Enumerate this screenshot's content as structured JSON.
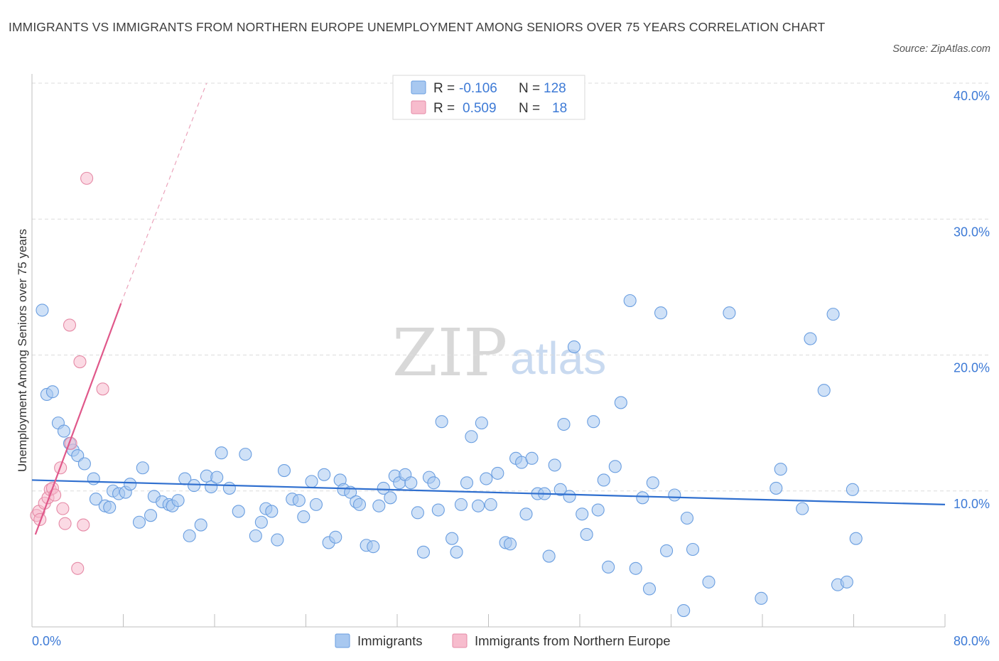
{
  "title": "IMMIGRANTS VS IMMIGRANTS FROM NORTHERN EUROPE UNEMPLOYMENT AMONG SENIORS OVER 75 YEARS CORRELATION CHART",
  "source": "Source: ZipAtlas.com",
  "watermark": {
    "zip": "ZIP",
    "atlas": "atlas"
  },
  "legend": {
    "r_label": "R =",
    "n_label": "N =",
    "rows": [
      {
        "name": "Immigrants",
        "r": "-0.106",
        "n": "128",
        "color": "#a8c8f0",
        "stroke": "#6a9ee0"
      },
      {
        "name": "Immigrants from Northern Europe",
        "r": "0.509",
        "n": "18",
        "color": "#f7bccd",
        "stroke": "#e58aa6"
      }
    ]
  },
  "chart_data": {
    "type": "scatter",
    "xlabel": "",
    "ylabel": "Unemployment Among Seniors over 75 years",
    "xlim": [
      0,
      80
    ],
    "ylim": [
      0,
      40
    ],
    "x_tick_labels": [
      "0.0%",
      "80.0%"
    ],
    "y_ticks": [
      10,
      20,
      30,
      40
    ],
    "y_tick_labels": [
      "10.0%",
      "20.0%",
      "30.0%",
      "40.0%"
    ],
    "grid": true,
    "series": [
      {
        "name": "Immigrants",
        "color": "#6a9ee0",
        "fill": "#a8c8f0",
        "trend": {
          "x": [
            0,
            80
          ],
          "y": [
            10.8,
            9.0
          ],
          "color": "#2f6fcf"
        },
        "points": [
          [
            0.9,
            23.3
          ],
          [
            1.3,
            17.1
          ],
          [
            1.8,
            17.3
          ],
          [
            2.3,
            15.0
          ],
          [
            2.8,
            14.4
          ],
          [
            3.3,
            13.5
          ],
          [
            3.6,
            13.0
          ],
          [
            4.0,
            12.6
          ],
          [
            4.6,
            12.0
          ],
          [
            5.4,
            10.9
          ],
          [
            5.6,
            9.4
          ],
          [
            6.4,
            8.9
          ],
          [
            6.8,
            8.8
          ],
          [
            7.1,
            10.0
          ],
          [
            7.6,
            9.8
          ],
          [
            8.2,
            9.9
          ],
          [
            8.6,
            10.5
          ],
          [
            9.4,
            7.7
          ],
          [
            9.7,
            11.7
          ],
          [
            10.4,
            8.2
          ],
          [
            10.7,
            9.6
          ],
          [
            11.4,
            9.2
          ],
          [
            12.0,
            9.0
          ],
          [
            12.3,
            8.9
          ],
          [
            12.8,
            9.3
          ],
          [
            13.4,
            10.9
          ],
          [
            13.8,
            6.7
          ],
          [
            14.2,
            10.4
          ],
          [
            14.8,
            7.5
          ],
          [
            15.3,
            11.1
          ],
          [
            15.7,
            10.3
          ],
          [
            16.2,
            11.0
          ],
          [
            16.6,
            12.8
          ],
          [
            17.3,
            10.2
          ],
          [
            18.1,
            8.5
          ],
          [
            18.7,
            12.7
          ],
          [
            19.6,
            6.7
          ],
          [
            20.1,
            7.7
          ],
          [
            20.5,
            8.7
          ],
          [
            21.0,
            8.5
          ],
          [
            21.5,
            6.4
          ],
          [
            22.1,
            11.5
          ],
          [
            22.8,
            9.4
          ],
          [
            23.4,
            9.3
          ],
          [
            23.8,
            8.1
          ],
          [
            24.5,
            10.7
          ],
          [
            24.9,
            9.0
          ],
          [
            25.6,
            11.2
          ],
          [
            26.0,
            6.2
          ],
          [
            26.6,
            6.6
          ],
          [
            27.0,
            10.8
          ],
          [
            27.3,
            10.1
          ],
          [
            27.9,
            9.9
          ],
          [
            28.4,
            9.2
          ],
          [
            28.7,
            9.0
          ],
          [
            29.3,
            6.0
          ],
          [
            29.9,
            5.9
          ],
          [
            30.4,
            8.9
          ],
          [
            30.8,
            10.2
          ],
          [
            31.4,
            9.5
          ],
          [
            31.8,
            11.1
          ],
          [
            32.2,
            10.6
          ],
          [
            32.7,
            11.2
          ],
          [
            33.2,
            10.6
          ],
          [
            33.8,
            8.4
          ],
          [
            34.3,
            5.5
          ],
          [
            34.8,
            11.0
          ],
          [
            35.2,
            10.6
          ],
          [
            35.6,
            8.6
          ],
          [
            35.9,
            15.1
          ],
          [
            36.8,
            6.5
          ],
          [
            37.2,
            5.5
          ],
          [
            37.6,
            9.0
          ],
          [
            38.1,
            10.6
          ],
          [
            38.5,
            14.0
          ],
          [
            39.1,
            8.9
          ],
          [
            39.4,
            15.0
          ],
          [
            39.8,
            10.9
          ],
          [
            40.2,
            9.0
          ],
          [
            40.8,
            11.3
          ],
          [
            41.5,
            6.2
          ],
          [
            41.9,
            6.1
          ],
          [
            42.4,
            12.4
          ],
          [
            42.9,
            12.1
          ],
          [
            43.3,
            8.3
          ],
          [
            43.8,
            12.4
          ],
          [
            44.3,
            9.8
          ],
          [
            44.9,
            9.8
          ],
          [
            45.3,
            5.2
          ],
          [
            45.8,
            11.9
          ],
          [
            46.3,
            10.1
          ],
          [
            46.6,
            14.9
          ],
          [
            47.1,
            9.6
          ],
          [
            47.5,
            20.6
          ],
          [
            48.2,
            8.3
          ],
          [
            48.6,
            6.8
          ],
          [
            49.2,
            15.1
          ],
          [
            49.6,
            8.6
          ],
          [
            50.1,
            10.8
          ],
          [
            50.5,
            4.4
          ],
          [
            51.1,
            11.8
          ],
          [
            51.6,
            16.5
          ],
          [
            52.4,
            24.0
          ],
          [
            52.9,
            4.3
          ],
          [
            53.5,
            9.5
          ],
          [
            54.1,
            2.8
          ],
          [
            54.4,
            10.6
          ],
          [
            55.1,
            23.1
          ],
          [
            55.6,
            5.6
          ],
          [
            56.3,
            9.7
          ],
          [
            57.1,
            1.2
          ],
          [
            57.4,
            8.0
          ],
          [
            57.9,
            5.7
          ],
          [
            59.3,
            3.3
          ],
          [
            61.1,
            23.1
          ],
          [
            63.9,
            2.1
          ],
          [
            65.2,
            10.2
          ],
          [
            65.6,
            11.6
          ],
          [
            67.5,
            8.7
          ],
          [
            68.2,
            21.2
          ],
          [
            69.4,
            17.4
          ],
          [
            70.6,
            3.1
          ],
          [
            71.4,
            3.3
          ],
          [
            71.9,
            10.1
          ],
          [
            72.2,
            6.5
          ],
          [
            70.2,
            23.0
          ]
        ]
      },
      {
        "name": "Immigrants from Northern Europe",
        "color": "#e58aa6",
        "fill": "#f7bccd",
        "trend": {
          "x": [
            0.3,
            7.8
          ],
          "y": [
            6.8,
            23.8
          ],
          "color": "#e0588a"
        },
        "trend_extension": {
          "x": [
            7.8,
            15.3
          ],
          "y": [
            23.8,
            40.0
          ]
        },
        "points": [
          [
            0.4,
            8.2
          ],
          [
            0.6,
            8.5
          ],
          [
            0.7,
            7.9
          ],
          [
            1.1,
            9.1
          ],
          [
            1.4,
            9.5
          ],
          [
            1.6,
            10.1
          ],
          [
            1.8,
            10.2
          ],
          [
            2.0,
            9.7
          ],
          [
            2.5,
            11.7
          ],
          [
            2.7,
            8.7
          ],
          [
            2.9,
            7.6
          ],
          [
            3.3,
            22.2
          ],
          [
            3.4,
            13.5
          ],
          [
            4.0,
            4.3
          ],
          [
            4.2,
            19.5
          ],
          [
            4.5,
            7.5
          ],
          [
            4.8,
            33.0
          ],
          [
            6.2,
            17.5
          ]
        ]
      }
    ]
  }
}
